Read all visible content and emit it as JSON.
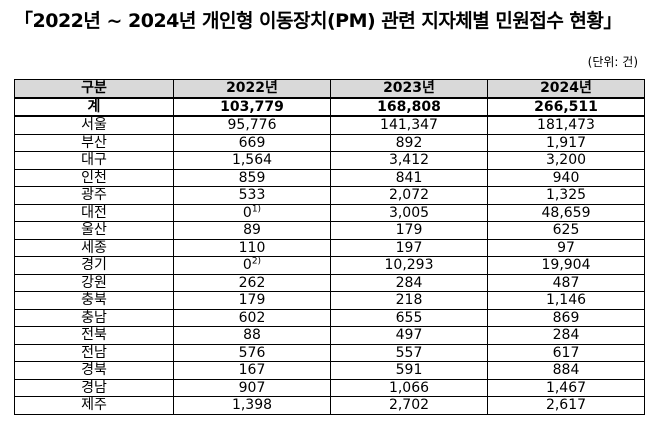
{
  "title": "「2022년 ~ 2024년 개인형 이동장치(PM) 관련 지자체별 민원접수 현황」",
  "unit": "(단위: 건)",
  "table": {
    "headers": [
      "구분",
      "2022년",
      "2023년",
      "2024년"
    ],
    "rows": [
      {
        "region": "계",
        "y2022": "103,779",
        "y2022_note": "",
        "y2023": "168,808",
        "y2024": "266,511"
      },
      {
        "region": "서울",
        "y2022": "95,776",
        "y2022_note": "",
        "y2023": "141,347",
        "y2024": "181,473"
      },
      {
        "region": "부산",
        "y2022": "669",
        "y2022_note": "",
        "y2023": "892",
        "y2024": "1,917"
      },
      {
        "region": "대구",
        "y2022": "1,564",
        "y2022_note": "",
        "y2023": "3,412",
        "y2024": "3,200"
      },
      {
        "region": "인천",
        "y2022": "859",
        "y2022_note": "",
        "y2023": "841",
        "y2024": "940"
      },
      {
        "region": "광주",
        "y2022": "533",
        "y2022_note": "",
        "y2023": "2,072",
        "y2024": "1,325"
      },
      {
        "region": "대전",
        "y2022": "0",
        "y2022_note": "1)",
        "y2023": "3,005",
        "y2024": "48,659"
      },
      {
        "region": "울산",
        "y2022": "89",
        "y2022_note": "",
        "y2023": "179",
        "y2024": "625"
      },
      {
        "region": "세종",
        "y2022": "110",
        "y2022_note": "",
        "y2023": "197",
        "y2024": "97"
      },
      {
        "region": "경기",
        "y2022": "0",
        "y2022_note": "2)",
        "y2023": "10,293",
        "y2024": "19,904"
      },
      {
        "region": "강원",
        "y2022": "262",
        "y2022_note": "",
        "y2023": "284",
        "y2024": "487"
      },
      {
        "region": "충북",
        "y2022": "179",
        "y2022_note": "",
        "y2023": "218",
        "y2024": "1,146"
      },
      {
        "region": "충남",
        "y2022": "602",
        "y2022_note": "",
        "y2023": "655",
        "y2024": "869"
      },
      {
        "region": "전북",
        "y2022": "88",
        "y2022_note": "",
        "y2023": "497",
        "y2024": "284"
      },
      {
        "region": "전남",
        "y2022": "576",
        "y2022_note": "",
        "y2023": "557",
        "y2024": "617"
      },
      {
        "region": "경북",
        "y2022": "167",
        "y2022_note": "",
        "y2023": "591",
        "y2024": "884"
      },
      {
        "region": "경남",
        "y2022": "907",
        "y2022_note": "",
        "y2023": "1,066",
        "y2024": "1,467"
      },
      {
        "region": "제주",
        "y2022": "1,398",
        "y2022_note": "",
        "y2023": "2,702",
        "y2024": "2,617"
      }
    ]
  }
}
